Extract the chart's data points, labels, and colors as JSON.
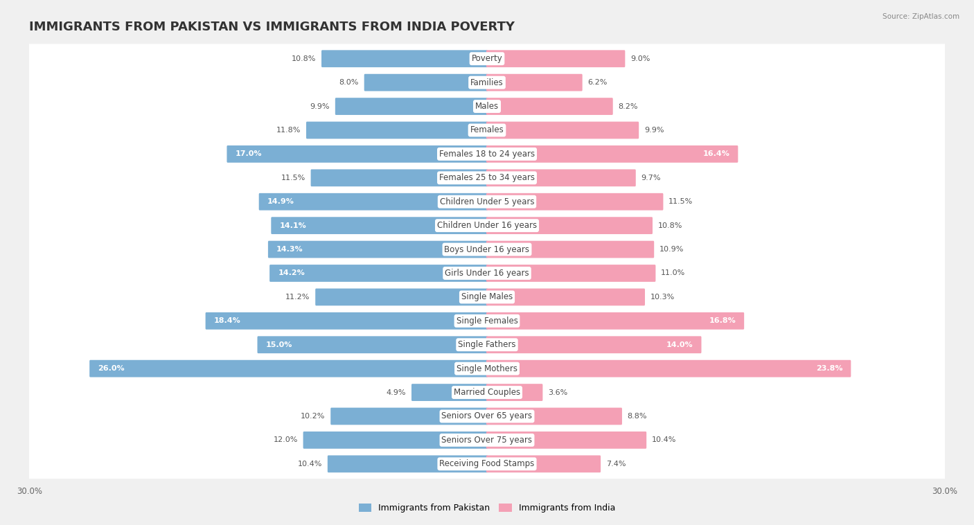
{
  "title": "IMMIGRANTS FROM PAKISTAN VS IMMIGRANTS FROM INDIA POVERTY",
  "source": "Source: ZipAtlas.com",
  "categories": [
    "Poverty",
    "Families",
    "Males",
    "Females",
    "Females 18 to 24 years",
    "Females 25 to 34 years",
    "Children Under 5 years",
    "Children Under 16 years",
    "Boys Under 16 years",
    "Girls Under 16 years",
    "Single Males",
    "Single Females",
    "Single Fathers",
    "Single Mothers",
    "Married Couples",
    "Seniors Over 65 years",
    "Seniors Over 75 years",
    "Receiving Food Stamps"
  ],
  "pakistan_values": [
    10.8,
    8.0,
    9.9,
    11.8,
    17.0,
    11.5,
    14.9,
    14.1,
    14.3,
    14.2,
    11.2,
    18.4,
    15.0,
    26.0,
    4.9,
    10.2,
    12.0,
    10.4
  ],
  "india_values": [
    9.0,
    6.2,
    8.2,
    9.9,
    16.4,
    9.7,
    11.5,
    10.8,
    10.9,
    11.0,
    10.3,
    16.8,
    14.0,
    23.8,
    3.6,
    8.8,
    10.4,
    7.4
  ],
  "pakistan_color": "#7bafd4",
  "india_color": "#f4a0b5",
  "pakistan_label": "Immigrants from Pakistan",
  "india_label": "Immigrants from India",
  "x_max": 30.0,
  "background_color": "#f0f0f0",
  "row_bg_color": "#ffffff",
  "bar_height": 0.62,
  "title_fontsize": 13,
  "label_fontsize": 8.5,
  "value_fontsize": 8.0,
  "axis_label_fontsize": 8.5,
  "inside_threshold": 14.0
}
